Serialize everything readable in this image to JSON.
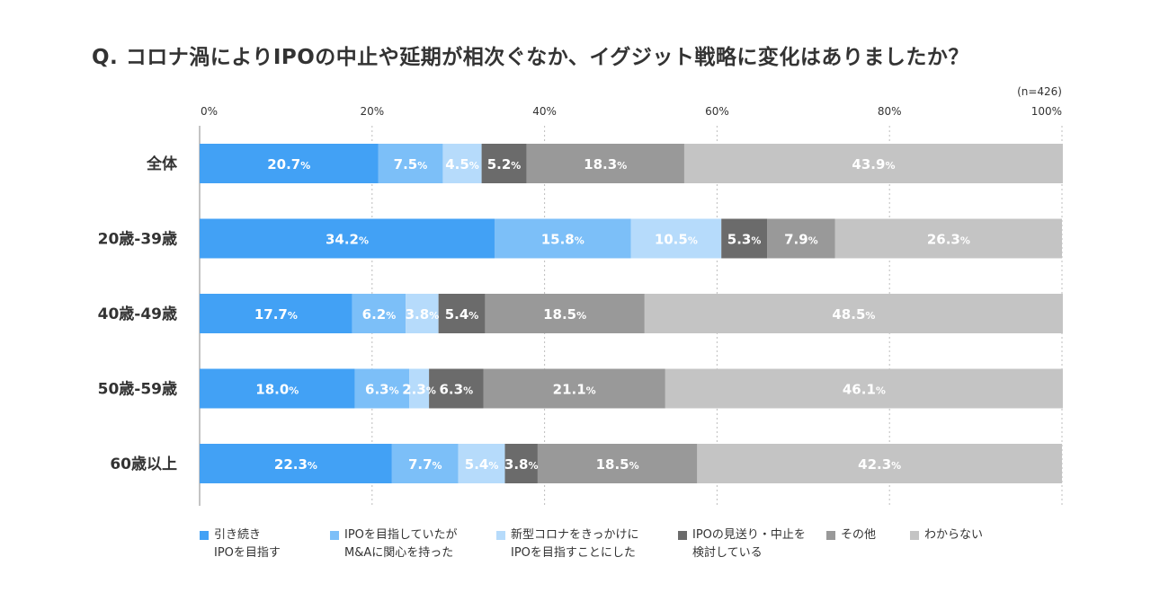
{
  "chart_data": {
    "type": "bar",
    "orientation": "horizontal",
    "stacked": true,
    "title": "Q. コロナ渦によりIPOの中止や延期が相次ぐなか、イグジット戦略に変化はありましたか？",
    "sample_note": "(n=426)",
    "x_ticks": [
      "0%",
      "20%",
      "40%",
      "60%",
      "80%",
      "100%"
    ],
    "xlim": [
      0,
      100
    ],
    "grid": true,
    "legend_position": "bottom",
    "value_unit": "%",
    "categories": [
      "全体",
      "20歳-39歳",
      "40歳-49歳",
      "50歳-59歳",
      "60歳以上"
    ],
    "series": [
      {
        "name": "引き続き\nIPOを目指す",
        "color": "#42a1f5",
        "values": [
          20.7,
          34.2,
          17.7,
          18.0,
          22.3
        ]
      },
      {
        "name": "IPOを目指していたが\nM&Aに関心を持った",
        "color": "#7cbff8",
        "values": [
          7.5,
          15.8,
          6.2,
          6.3,
          7.7
        ]
      },
      {
        "name": "新型コロナをきっかけに\nIPOを目指すことにした",
        "color": "#b6dbfb",
        "values": [
          4.5,
          10.5,
          3.8,
          2.3,
          5.4
        ]
      },
      {
        "name": "IPOの見送り・中止を\n検討している",
        "color": "#6b6b6b",
        "values": [
          5.2,
          5.3,
          5.4,
          6.3,
          3.8
        ]
      },
      {
        "name": "その他",
        "color": "#999999",
        "values": [
          18.3,
          7.9,
          18.5,
          21.1,
          18.5
        ]
      },
      {
        "name": "わからない",
        "color": "#c4c4c4",
        "values": [
          43.9,
          26.3,
          48.5,
          46.1,
          42.3
        ]
      }
    ]
  }
}
